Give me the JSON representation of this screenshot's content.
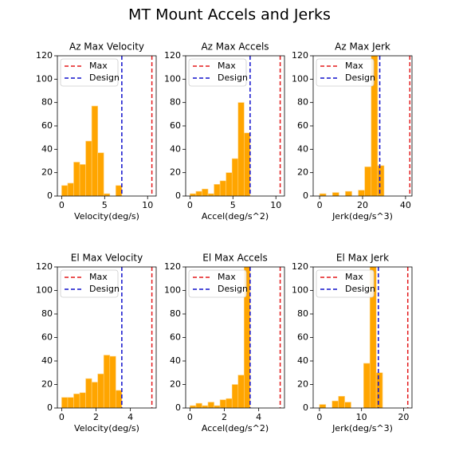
{
  "title": "MT Mount Accels and Jerks",
  "chart_data": [
    {
      "type": "histogram",
      "title": "Az Max Velocity",
      "x_label": "Velocity(deg/s)",
      "color": "#ffa500",
      "bins": [
        0,
        0.7,
        1.4,
        2.1,
        2.8,
        3.5,
        4.2,
        4.9,
        5.6,
        6.3,
        7.0
      ],
      "values": [
        9,
        11,
        29,
        27,
        47,
        77,
        37,
        2,
        0,
        9
      ],
      "xlim": [
        -0.5,
        11
      ],
      "xticks": [
        0,
        5,
        10
      ],
      "ylim": [
        0,
        120
      ],
      "yticks": [
        0,
        20,
        40,
        60,
        80,
        100,
        120
      ],
      "vlines": [
        {
          "name": "Max",
          "color": "#e41a1c",
          "value": 10.5
        },
        {
          "name": "Design",
          "color": "#1010cc",
          "value": 7.0
        }
      ]
    },
    {
      "type": "histogram",
      "title": "Az Max Accels",
      "x_label": "Accel(deg/s^2)",
      "color": "#ffa500",
      "bins": [
        0,
        0.7,
        1.4,
        2.1,
        2.8,
        3.5,
        4.2,
        4.9,
        5.6,
        6.3,
        7.0
      ],
      "values": [
        2,
        4,
        6,
        2,
        10,
        13,
        20,
        32,
        80,
        54
      ],
      "xlim": [
        -0.5,
        11
      ],
      "xticks": [
        0,
        5,
        10
      ],
      "ylim": [
        0,
        120
      ],
      "yticks": [
        0,
        20,
        40,
        60,
        80,
        100,
        120
      ],
      "vlines": [
        {
          "name": "Max",
          "color": "#e41a1c",
          "value": 10.5
        },
        {
          "name": "Design",
          "color": "#1010cc",
          "value": 7.0
        }
      ]
    },
    {
      "type": "histogram",
      "title": "Az Max Jerk",
      "x_label": "Jerk(deg/s^3)",
      "color": "#ffa500",
      "bins": [
        0,
        3,
        6,
        9,
        12,
        15,
        18,
        21,
        24,
        27,
        30
      ],
      "values": [
        2,
        0,
        3,
        0,
        4,
        0,
        5,
        25,
        130,
        26
      ],
      "xlim": [
        -3,
        43
      ],
      "xticks": [
        0,
        20,
        40
      ],
      "ylim": [
        0,
        120
      ],
      "yticks": [
        0,
        20,
        40,
        60,
        80,
        100,
        120
      ],
      "vlines": [
        {
          "name": "Max",
          "color": "#e41a1c",
          "value": 42
        },
        {
          "name": "Design",
          "color": "#1010cc",
          "value": 28
        }
      ]
    },
    {
      "type": "histogram",
      "title": "El Max Velocity",
      "x_label": "Velocity(deg/s)",
      "color": "#ffa500",
      "bins": [
        0,
        0.35,
        0.7,
        1.05,
        1.4,
        1.75,
        2.1,
        2.45,
        2.8,
        3.15,
        3.5
      ],
      "values": [
        9,
        9,
        12,
        13,
        25,
        22,
        29,
        45,
        44,
        15
      ],
      "xlim": [
        -0.25,
        5.5
      ],
      "xticks": [
        0,
        2,
        4
      ],
      "ylim": [
        0,
        120
      ],
      "yticks": [
        0,
        20,
        40,
        60,
        80,
        100,
        120
      ],
      "vlines": [
        {
          "name": "Max",
          "color": "#e41a1c",
          "value": 5.25
        },
        {
          "name": "Design",
          "color": "#1010cc",
          "value": 3.5
        }
      ]
    },
    {
      "type": "histogram",
      "title": "El Max Accels",
      "x_label": "Accel(deg/s^2)",
      "color": "#ffa500",
      "bins": [
        0,
        0.35,
        0.7,
        1.05,
        1.4,
        1.75,
        2.1,
        2.45,
        2.8,
        3.15,
        3.5
      ],
      "values": [
        2,
        4,
        2,
        5,
        2,
        7,
        8,
        20,
        28,
        130
      ],
      "xlim": [
        -0.25,
        5.5
      ],
      "xticks": [
        0,
        2,
        4
      ],
      "ylim": [
        0,
        120
      ],
      "yticks": [
        0,
        20,
        40,
        60,
        80,
        100,
        120
      ],
      "vlines": [
        {
          "name": "Max",
          "color": "#e41a1c",
          "value": 5.25
        },
        {
          "name": "Design",
          "color": "#1010cc",
          "value": 3.5
        }
      ]
    },
    {
      "type": "histogram",
      "title": "El Max Jerk",
      "x_label": "Jerk(deg/s^3)",
      "color": "#ffa500",
      "bins": [
        0,
        1.5,
        3,
        4.5,
        6,
        7.5,
        9,
        10.5,
        12,
        13.5,
        15
      ],
      "values": [
        3,
        0,
        6,
        10,
        5,
        0,
        0,
        38,
        130,
        30
      ],
      "xlim": [
        -1.5,
        22
      ],
      "xticks": [
        0,
        10,
        20
      ],
      "ylim": [
        0,
        120
      ],
      "yticks": [
        0,
        20,
        40,
        60,
        80,
        100,
        120
      ],
      "vlines": [
        {
          "name": "Max",
          "color": "#e41a1c",
          "value": 21
        },
        {
          "name": "Design",
          "color": "#1010cc",
          "value": 14
        }
      ]
    }
  ]
}
